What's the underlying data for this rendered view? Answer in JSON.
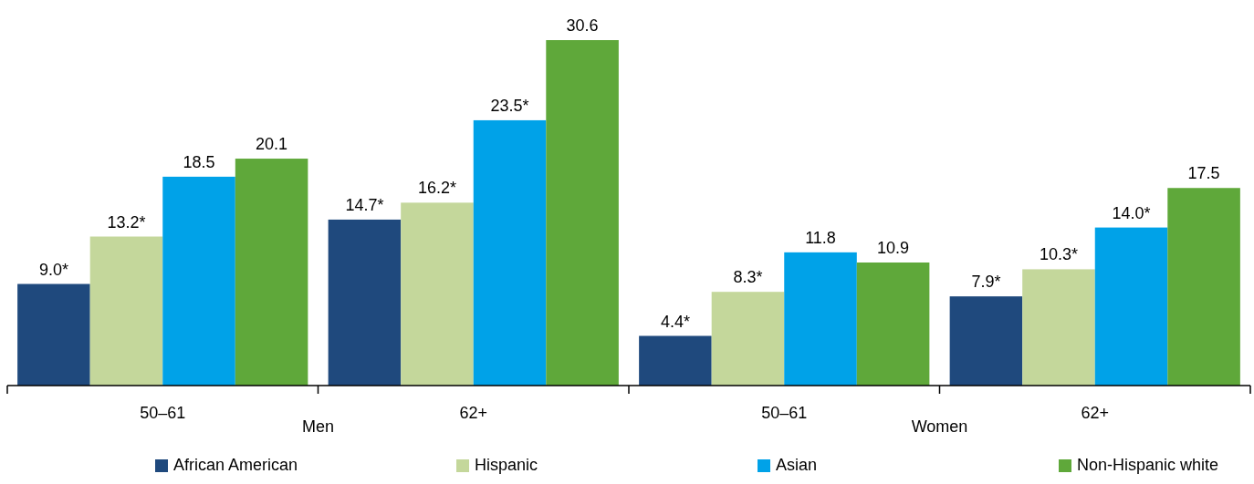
{
  "chart_data": {
    "type": "bar",
    "categories": [
      "50–61",
      "62+",
      "50–61",
      "62+"
    ],
    "series": [
      {
        "name": "African American",
        "color": "#1f497d",
        "values": [
          9.0,
          14.7,
          4.4,
          7.9
        ],
        "value_labels": [
          "9.0*",
          "14.7*",
          "4.4*",
          "7.9*"
        ]
      },
      {
        "name": "Hispanic",
        "color": "#c4d79b",
        "values": [
          13.2,
          16.2,
          8.3,
          10.3
        ],
        "value_labels": [
          "13.2*",
          "16.2*",
          "8.3*",
          "10.3*"
        ]
      },
      {
        "name": "Asian",
        "color": "#00a2e8",
        "values": [
          18.5,
          23.5,
          11.8,
          14.0
        ],
        "value_labels": [
          "18.5",
          "23.5*",
          "11.8",
          "14.0*"
        ]
      },
      {
        "name": "Non-Hispanic white",
        "color": "#5fa83a",
        "values": [
          20.1,
          30.6,
          10.9,
          17.5
        ],
        "value_labels": [
          "20.1",
          "30.6",
          "10.9",
          "17.5"
        ]
      }
    ],
    "annotations": [
      "Men",
      "Women"
    ],
    "legend": "bottom"
  }
}
